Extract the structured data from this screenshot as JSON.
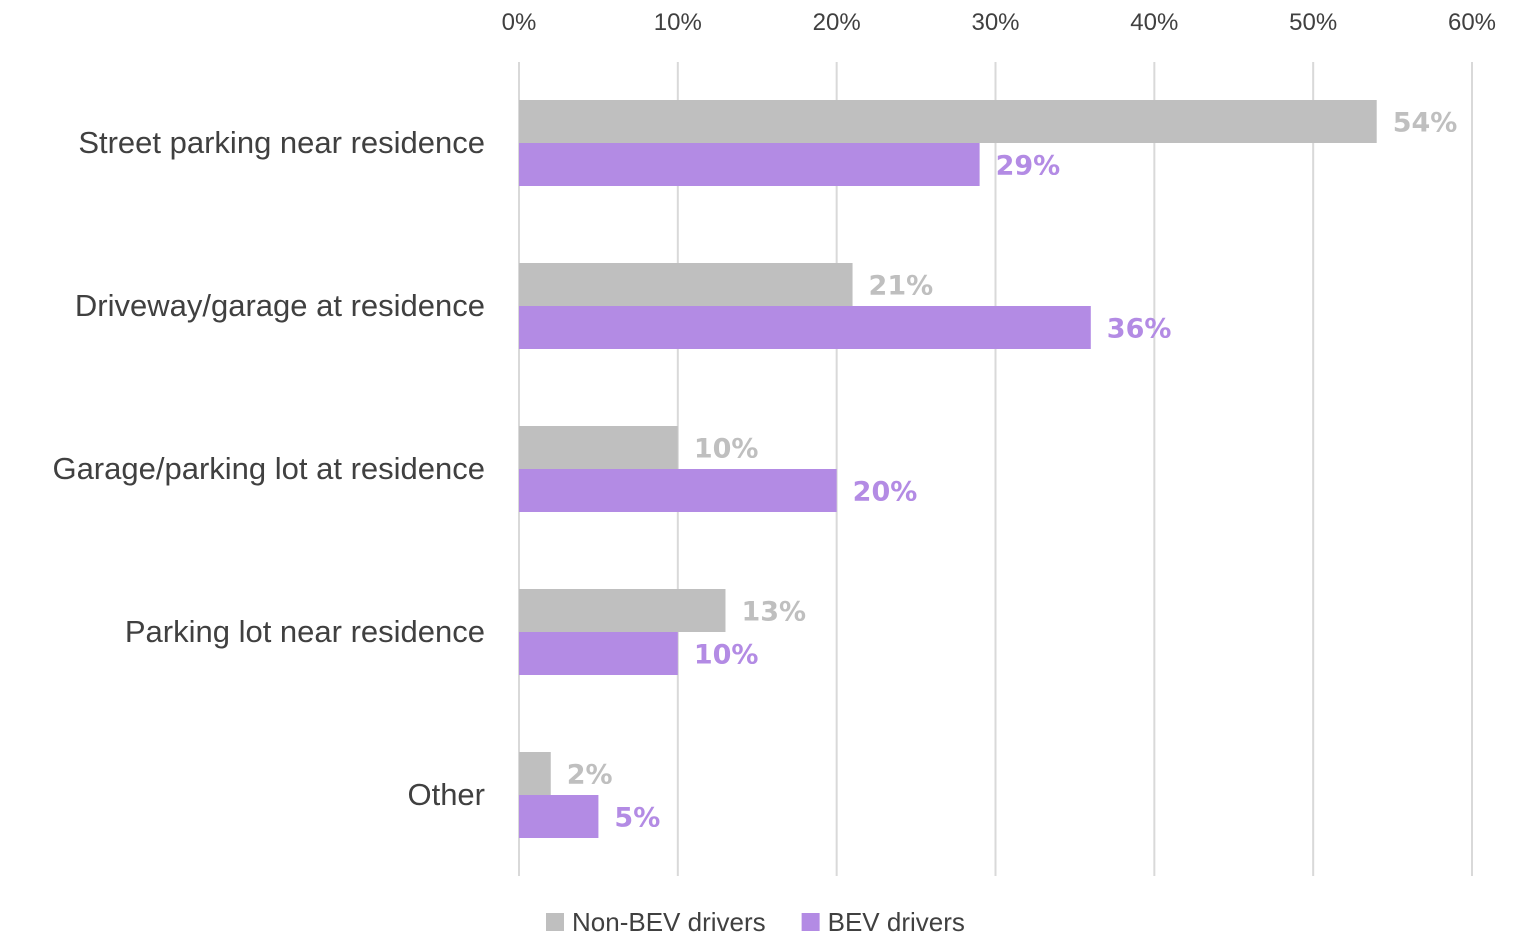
{
  "chart_data": {
    "type": "bar",
    "orientation": "horizontal",
    "title": "",
    "xlabel": "",
    "ylabel": "",
    "xlim": [
      0,
      60
    ],
    "x_ticks": [
      "0%",
      "10%",
      "20%",
      "30%",
      "40%",
      "50%",
      "60%"
    ],
    "x_axis_position": "top",
    "grid": true,
    "legend_position": "bottom",
    "categories": [
      "Street parking near residence",
      "Driveway/garage at residence",
      "Garage/parking lot at residence",
      "Parking lot near residence",
      "Other"
    ],
    "series": [
      {
        "name": "Non-BEV drivers",
        "color": "#bfbfbf",
        "values": [
          54,
          21,
          10,
          13,
          2
        ],
        "labels": [
          "54%",
          "21%",
          "10%",
          "13%",
          "2%"
        ]
      },
      {
        "name": "BEV drivers",
        "color": "#b38be4",
        "values": [
          29,
          36,
          20,
          10,
          5
        ],
        "labels": [
          "29%",
          "36%",
          "20%",
          "10%",
          "5%"
        ]
      }
    ]
  }
}
